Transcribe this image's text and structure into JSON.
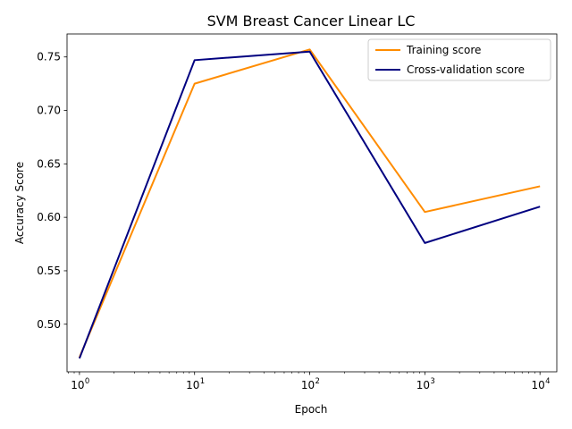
{
  "chart_data": {
    "type": "line",
    "title": "SVM Breast Cancer Linear LC",
    "xlabel": "Epoch",
    "ylabel": "Accuracy Score",
    "xscale": "log",
    "xlim": [
      0.78,
      14000
    ],
    "ylim": [
      0.4555,
      0.7715
    ],
    "x": [
      1,
      10,
      100,
      1000,
      10000
    ],
    "xticks": [
      {
        "value": 1,
        "base": "10",
        "exp": "0"
      },
      {
        "value": 10,
        "base": "10",
        "exp": "1"
      },
      {
        "value": 100,
        "base": "10",
        "exp": "2"
      },
      {
        "value": 1000,
        "base": "10",
        "exp": "3"
      },
      {
        "value": 10000,
        "base": "10",
        "exp": "4"
      }
    ],
    "yticks": [
      0.5,
      0.55,
      0.6,
      0.65,
      0.7,
      0.75
    ],
    "ytick_labels": [
      "0.50",
      "0.55",
      "0.60",
      "0.65",
      "0.70",
      "0.75"
    ],
    "series": [
      {
        "name": "Training score",
        "color": "#ff8c00",
        "values": [
          0.469,
          0.725,
          0.757,
          0.605,
          0.629
        ]
      },
      {
        "name": "Cross-validation score",
        "color": "#000080",
        "values": [
          0.468,
          0.747,
          0.755,
          0.576,
          0.61
        ]
      }
    ],
    "legend": "top-right",
    "grid": false
  }
}
